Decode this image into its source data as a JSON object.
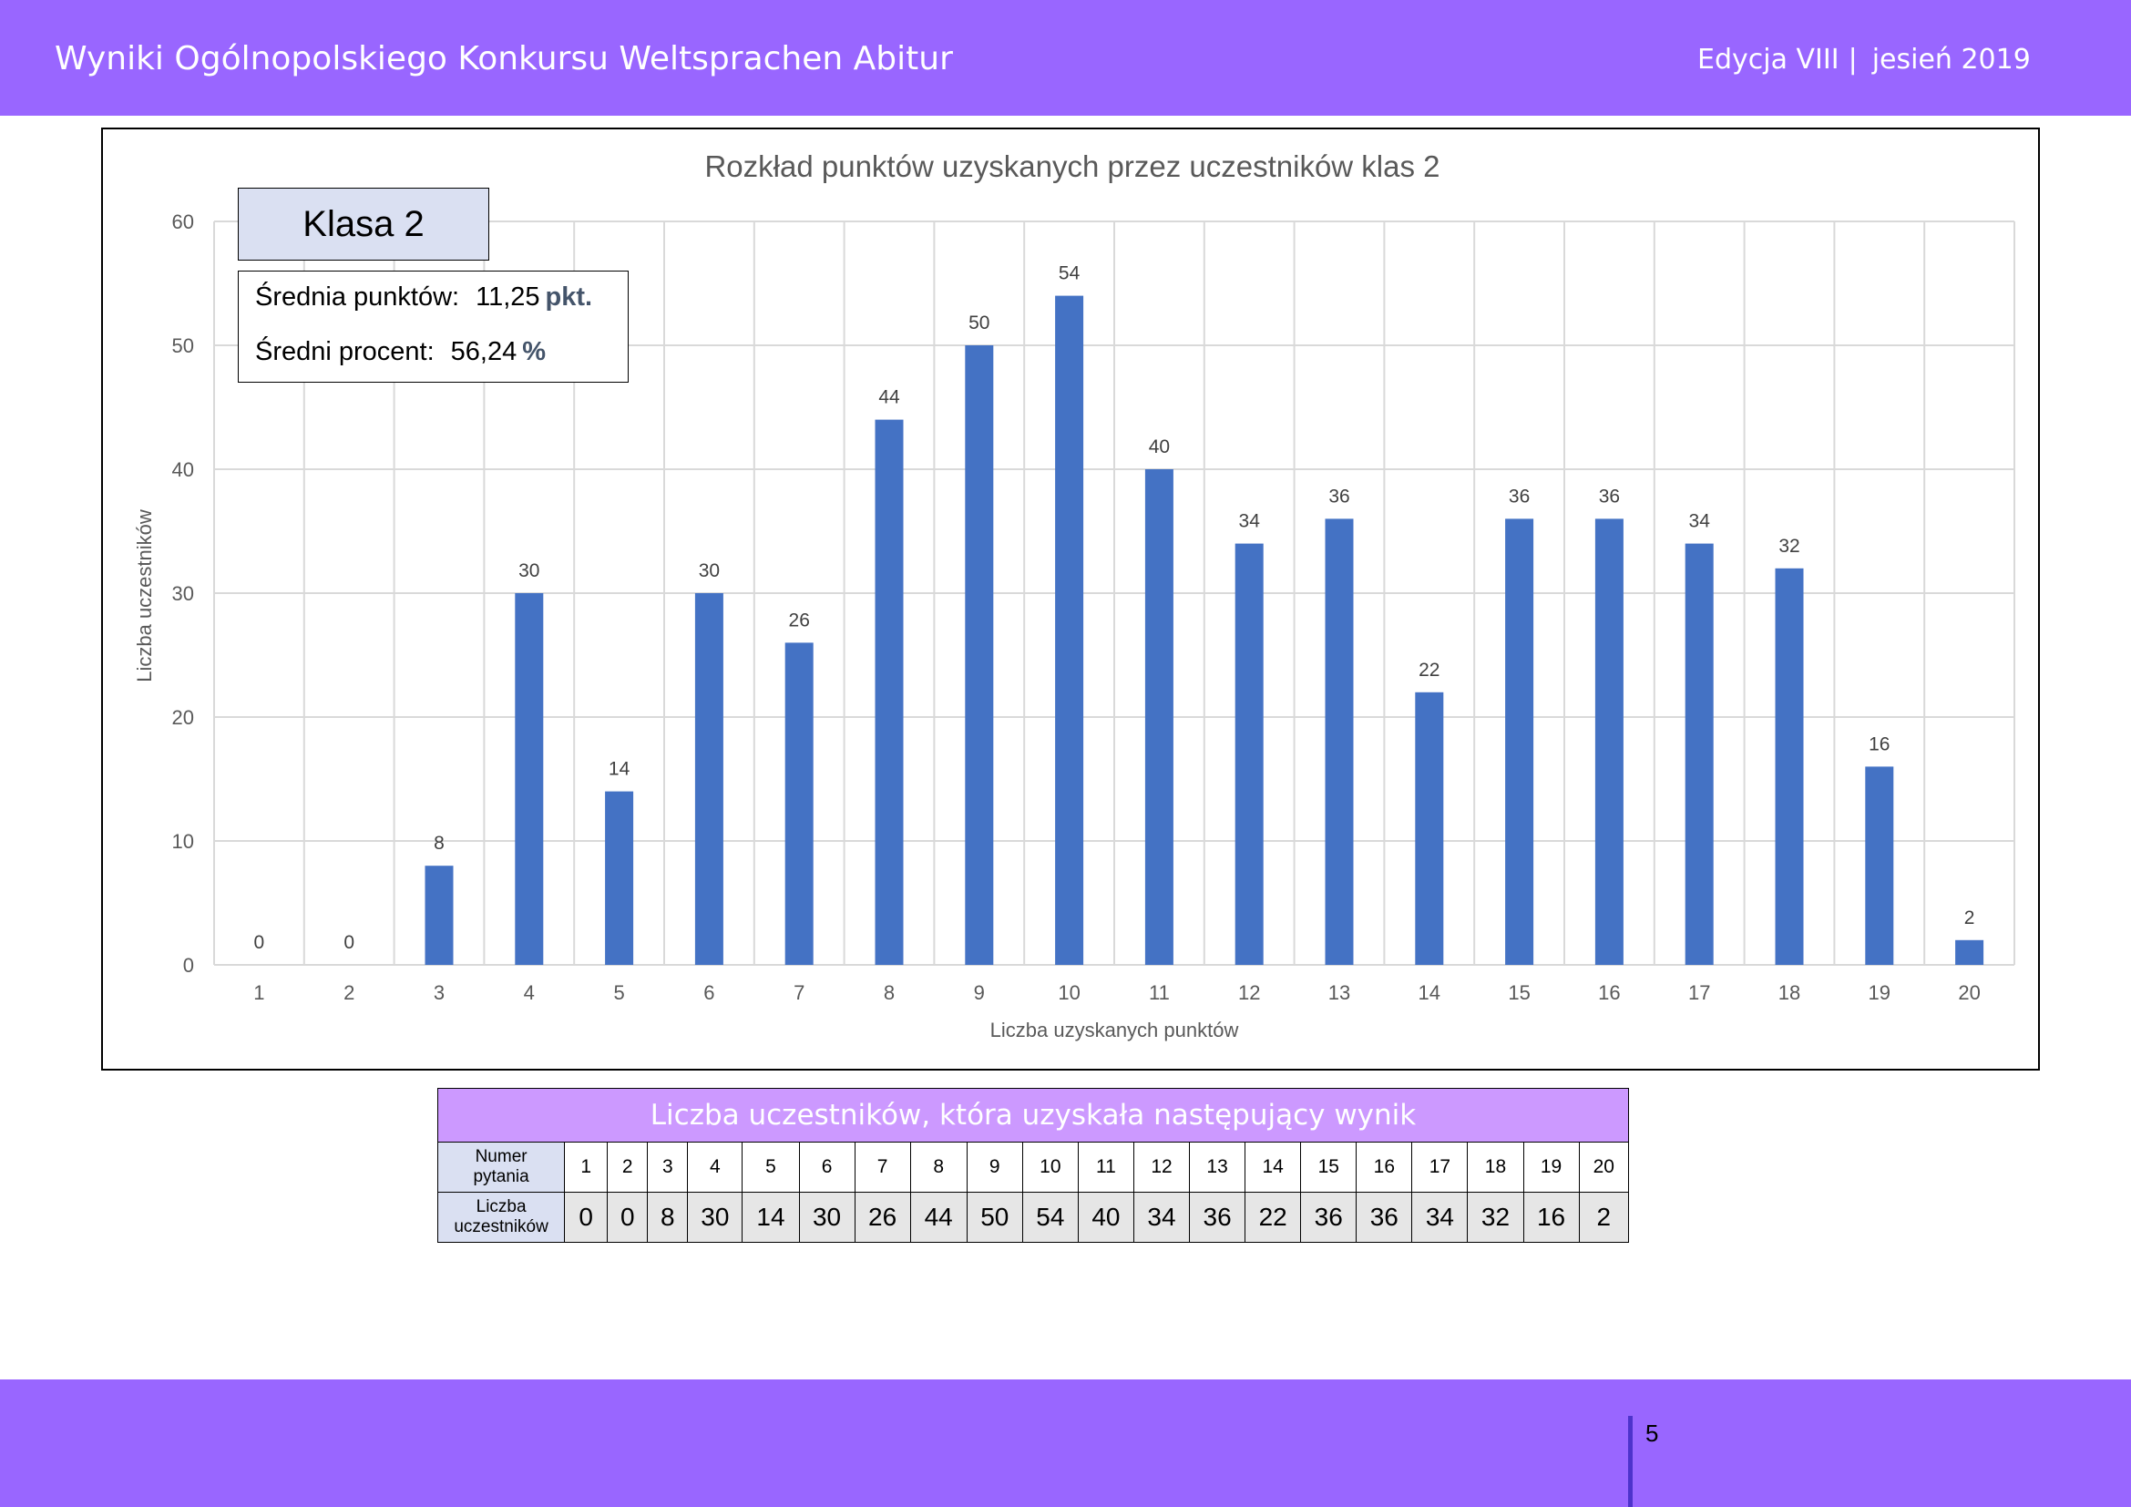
{
  "header": {
    "title": "Wyniki Ogólnopolskiego Konkursu Weltsprachen Abitur",
    "edition": "Edycja VIII",
    "separator": "|",
    "season": "jesień 2019"
  },
  "info": {
    "class_label": "Klasa 2",
    "avg_points_label": "Średnia punktów:",
    "avg_points_value": "11,25",
    "avg_points_unit": "pkt.",
    "avg_percent_label": "Średni procent:",
    "avg_percent_value": "56,24",
    "avg_percent_unit": "%"
  },
  "chart_data": {
    "type": "bar",
    "title": "Rozkład punktów uzyskanych przez uczestników klas 2",
    "xlabel": "Liczba uzyskanych punktów",
    "ylabel": "Liczba uczestników",
    "categories": [
      "1",
      "2",
      "3",
      "4",
      "5",
      "6",
      "7",
      "8",
      "9",
      "10",
      "11",
      "12",
      "13",
      "14",
      "15",
      "16",
      "17",
      "18",
      "19",
      "20"
    ],
    "values": [
      0,
      0,
      8,
      30,
      14,
      30,
      26,
      44,
      50,
      54,
      40,
      34,
      36,
      22,
      36,
      36,
      34,
      32,
      16,
      2
    ],
    "ylim": [
      0,
      60
    ],
    "yticks": [
      0,
      10,
      20,
      30,
      40,
      50,
      60
    ],
    "grid": true,
    "legend": false,
    "bar_color": "#4472c4",
    "data_labels": true
  },
  "table": {
    "header": "Liczba uczestników, która uzyskała następujący wynik",
    "row1_label_line1": "Numer",
    "row1_label_line2": "pytania",
    "row2_label_line1": "Liczba",
    "row2_label_line2": "uczestników"
  },
  "footer": {
    "page_number": "5"
  },
  "colors": {
    "brand_purple": "#9966ff",
    "table_header": "#cc99ff",
    "label_blue": "#dae0f2"
  }
}
